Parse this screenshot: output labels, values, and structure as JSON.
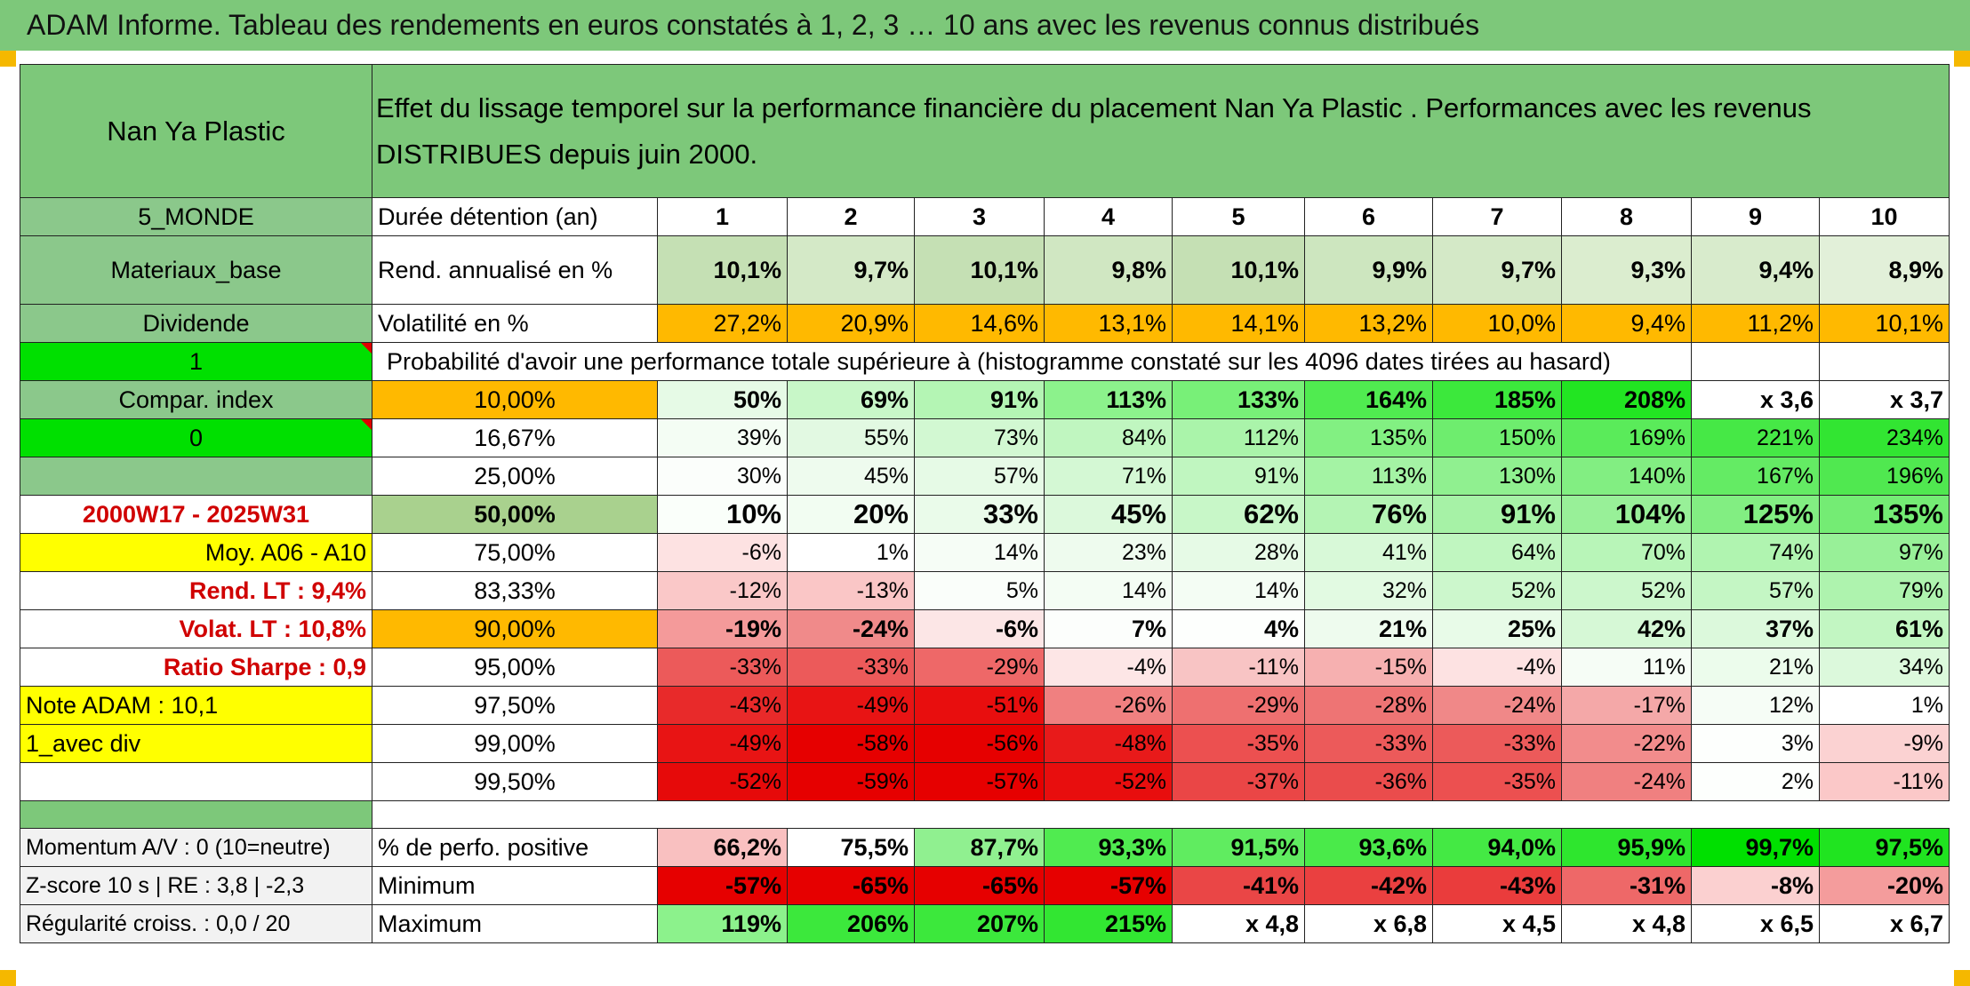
{
  "title": "ADAM Informe. Tableau des rendements en euros constatés à 1, 2, 3 … 10 ans avec les revenus connus distribués",
  "header": {
    "company": "Nan Ya Plastic",
    "description": "Effet du lissage temporel sur la performance financière du placement Nan Ya Plastic . Performances avec les revenus DISTRIBUES depuis juin 2000."
  },
  "left": {
    "region": "5_MONDE",
    "sector": "Materiaux_base",
    "dividend": "Dividende",
    "value_1": "1",
    "compar": "Compar. index",
    "value_0": "0",
    "period": "2000W17 - 2025W31",
    "moy": "Moy. A06 - A10",
    "rend_lt": "Rend. LT :   9,4%",
    "volat_lt": "Volat. LT :   10,8%",
    "sharpe": "Ratio Sharpe :    0,9",
    "note": "Note ADAM : 10,1",
    "avec_div": "1_avec div",
    "momentum": "Momentum A/V : 0 (10=neutre)",
    "zscore": "Z-score 10 s | RE : 3,8 | -2,3",
    "regularite": "Régularité croiss. : 0,0 / 20"
  },
  "labels": {
    "duree": "Durée détention (an)",
    "rend": "Rend. annualisé en %",
    "vol": "Volatilité en %",
    "prob": "Probabilité d'avoir une performance totale supérieure à (histogramme constaté sur les 4096 dates tirées au hasard)",
    "pos": "% de perfo. positive",
    "min": "Minimum",
    "max": "Maximum"
  },
  "years": [
    "1",
    "2",
    "3",
    "4",
    "5",
    "6",
    "7",
    "8",
    "9",
    "10"
  ],
  "rendement": [
    "10,1%",
    "9,7%",
    "10,1%",
    "9,8%",
    "10,1%",
    "9,9%",
    "9,7%",
    "9,3%",
    "9,4%",
    "8,9%"
  ],
  "volatilite": [
    "27,2%",
    "20,9%",
    "14,6%",
    "13,1%",
    "14,1%",
    "13,2%",
    "10,0%",
    "9,4%",
    "11,2%",
    "10,1%"
  ],
  "prob_rows": [
    {
      "p": "10,00%",
      "v": [
        "50%",
        "69%",
        "91%",
        "113%",
        "133%",
        "164%",
        "185%",
        "208%",
        "x 3,6",
        "x 3,7"
      ]
    },
    {
      "p": "16,67%",
      "v": [
        "39%",
        "55%",
        "73%",
        "84%",
        "112%",
        "135%",
        "150%",
        "169%",
        "221%",
        "234%"
      ]
    },
    {
      "p": "25,00%",
      "v": [
        "30%",
        "45%",
        "57%",
        "71%",
        "91%",
        "113%",
        "130%",
        "140%",
        "167%",
        "196%"
      ]
    },
    {
      "p": "50,00%",
      "v": [
        "10%",
        "20%",
        "33%",
        "45%",
        "62%",
        "76%",
        "91%",
        "104%",
        "125%",
        "135%"
      ]
    },
    {
      "p": "75,00%",
      "v": [
        "-6%",
        "1%",
        "14%",
        "23%",
        "28%",
        "41%",
        "64%",
        "70%",
        "74%",
        "97%"
      ]
    },
    {
      "p": "83,33%",
      "v": [
        "-12%",
        "-13%",
        "5%",
        "14%",
        "14%",
        "32%",
        "52%",
        "52%",
        "57%",
        "79%"
      ]
    },
    {
      "p": "90,00%",
      "v": [
        "-19%",
        "-24%",
        "-6%",
        "7%",
        "4%",
        "21%",
        "25%",
        "42%",
        "37%",
        "61%"
      ]
    },
    {
      "p": "95,00%",
      "v": [
        "-33%",
        "-33%",
        "-29%",
        "-4%",
        "-11%",
        "-15%",
        "-4%",
        "11%",
        "21%",
        "34%"
      ]
    },
    {
      "p": "97,50%",
      "v": [
        "-43%",
        "-49%",
        "-51%",
        "-26%",
        "-29%",
        "-28%",
        "-24%",
        "-17%",
        "12%",
        "1%"
      ]
    },
    {
      "p": "99,00%",
      "v": [
        "-49%",
        "-58%",
        "-56%",
        "-48%",
        "-35%",
        "-33%",
        "-33%",
        "-22%",
        "3%",
        "-9%"
      ]
    },
    {
      "p": "99,50%",
      "v": [
        "-52%",
        "-59%",
        "-57%",
        "-52%",
        "-37%",
        "-36%",
        "-35%",
        "-24%",
        "2%",
        "-11%"
      ]
    }
  ],
  "positive": [
    "66,2%",
    "75,5%",
    "87,7%",
    "93,3%",
    "91,5%",
    "93,6%",
    "94,0%",
    "95,9%",
    "99,7%",
    "97,5%"
  ],
  "minimum": [
    "-57%",
    "-65%",
    "-65%",
    "-57%",
    "-41%",
    "-42%",
    "-43%",
    "-31%",
    "-8%",
    "-20%"
  ],
  "maximum": [
    "119%",
    "206%",
    "207%",
    "215%",
    "x 4,8",
    "x 6,8",
    "x 4,5",
    "x 4,8",
    "x 6,5",
    "x 6,7"
  ],
  "colors": {
    "prob_bg": [
      [
        "#e6fae6",
        "#c8f7c8",
        "#b4f5b4",
        "#8cf28c",
        "#78f078",
        "#50eb50",
        "#3ce83c",
        "#22e522",
        "#ffffff",
        "#ffffff"
      ],
      [
        "#f4fdf4",
        "#e2f9e2",
        "#d2f8d2",
        "#c0f6c0",
        "#aaf4aa",
        "#82f082",
        "#6eed6e",
        "#5aeb5a",
        "#46e846",
        "#32e532"
      ],
      [
        "#fbfefb",
        "#eefbee",
        "#e6fae6",
        "#d4f8d4",
        "#c0f6c0",
        "#a4f3a4",
        "#90f090",
        "#82ee82",
        "#64eb64",
        "#50e850"
      ],
      [
        "#fafffa",
        "#f2fdf2",
        "#eafbea",
        "#dcf9dc",
        "#c8f7c8",
        "#b4f4b4",
        "#a6f2a6",
        "#98f098",
        "#82ee82",
        "#74ec74"
      ],
      [
        "#fde2e2",
        "#ffffff",
        "#f6fdf6",
        "#eefbee",
        "#e6fae6",
        "#d8f9d8",
        "#c0f6c0",
        "#b8f5b8",
        "#b0f4b0",
        "#98f098"
      ],
      [
        "#fac8c8",
        "#fac6c6",
        "#fafefa",
        "#f4fdf4",
        "#f4fdf4",
        "#e2fae2",
        "#ccf7cc",
        "#ccf7cc",
        "#c4f6c4",
        "#aef3ae"
      ],
      [
        "#f49a9a",
        "#f08a8a",
        "#fce6e6",
        "#fcfefc",
        "#fdfffd",
        "#eefbee",
        "#e8fbe8",
        "#d6f8d6",
        "#dcf9dc",
        "#c2f6c2"
      ],
      [
        "#ec5a5a",
        "#ec5a5a",
        "#ee6868",
        "#fde6e6",
        "#f8c4c4",
        "#f6b0b0",
        "#fde2e2",
        "#f6fdf6",
        "#ecfcec",
        "#dcf9dc"
      ],
      [
        "#e82a2a",
        "#e81414",
        "#e80e0e",
        "#f08080",
        "#ee7070",
        "#ee7474",
        "#f08888",
        "#f4a8a8",
        "#f6fdf6",
        "#ffffff"
      ],
      [
        "#e81414",
        "#e60000",
        "#e60000",
        "#e81a1a",
        "#ec5050",
        "#ec5a5a",
        "#ec5a5a",
        "#f28c8c",
        "#fdfffd",
        "#fbd2d2"
      ],
      [
        "#e60a0a",
        "#e60000",
        "#e60000",
        "#e80e0e",
        "#ea4646",
        "#ea4c4c",
        "#ec5050",
        "#f08080",
        "#fdfffd",
        "#fbc8c8"
      ]
    ],
    "pos_bg": [
      "#f9c0c0",
      "#ffffff",
      "#90f090",
      "#50eb50",
      "#60ec60",
      "#4aea4a",
      "#44e944",
      "#2ee62e",
      "#00e000",
      "#20e420"
    ],
    "min_bg": [
      "#e60000",
      "#e60000",
      "#e60000",
      "#e60000",
      "#ea4646",
      "#ea4040",
      "#ea3c3c",
      "#ee6868",
      "#fbd0d0",
      "#f49c9c"
    ],
    "max_bg": [
      "#8cf28c",
      "#3ce83c",
      "#3ce83c",
      "#32e632",
      "#ffffff",
      "#ffffff",
      "#ffffff",
      "#ffffff",
      "#ffffff",
      "#ffffff"
    ]
  }
}
